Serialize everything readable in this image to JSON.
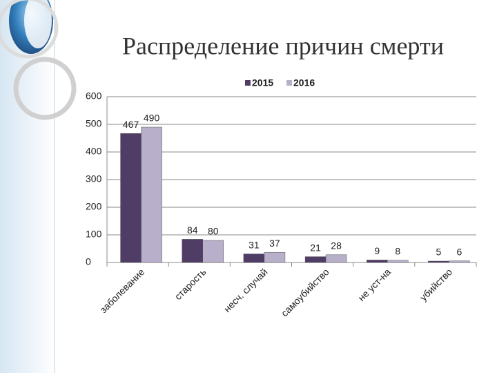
{
  "chart_data": {
    "type": "bar",
    "title": "Распределение причин смерти",
    "categories": [
      "заболевание",
      "старость",
      "несч. случай",
      "самоубийство",
      "не уст-на",
      "убийство"
    ],
    "series": [
      {
        "name": "2015",
        "color": "#4f3d66",
        "values": [
          467,
          84,
          31,
          21,
          9,
          5
        ]
      },
      {
        "name": "2016",
        "color": "#b8b0ca",
        "values": [
          490,
          80,
          37,
          28,
          8,
          6
        ]
      }
    ],
    "ylim": [
      0,
      600
    ],
    "yticks": [
      0,
      100,
      200,
      300,
      400,
      500,
      600
    ],
    "grid": true,
    "legend": "top"
  }
}
